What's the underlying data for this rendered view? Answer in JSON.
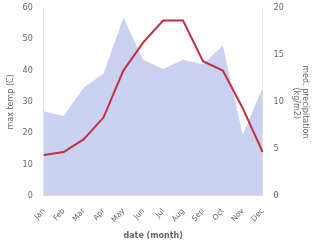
{
  "chart_data": {
    "type": "line",
    "categories": [
      "Jan",
      "Feb",
      "Mar",
      "Apr",
      "May",
      "Jun",
      "Jul",
      "Aug",
      "Sep",
      "Oct",
      "Nov",
      "Dec"
    ],
    "series": [
      {
        "type": "area",
        "color": "#adb8e8",
        "axis": "y2",
        "values": [
          9.0,
          8.5,
          11.5,
          13.0,
          19.0,
          14.5,
          13.5,
          14.5,
          14.0,
          16.0,
          6.5,
          11.5
        ]
      },
      {
        "type": "line",
        "color": "#c03040",
        "values": [
          13,
          14,
          18,
          25,
          40,
          49,
          56,
          56,
          43,
          40,
          28,
          14
        ]
      }
    ],
    "xlabel": "date (month)",
    "ylabel": "max temp (C)",
    "y2label": "med. precipitation\n (kg/m2)",
    "ylim": [
      0,
      60
    ],
    "yticks": [
      0,
      10,
      20,
      30,
      40,
      50,
      60
    ],
    "y2lim": [
      0,
      20
    ],
    "y2ticks": [
      0,
      5,
      10,
      15,
      20
    ],
    "grid": false
  }
}
